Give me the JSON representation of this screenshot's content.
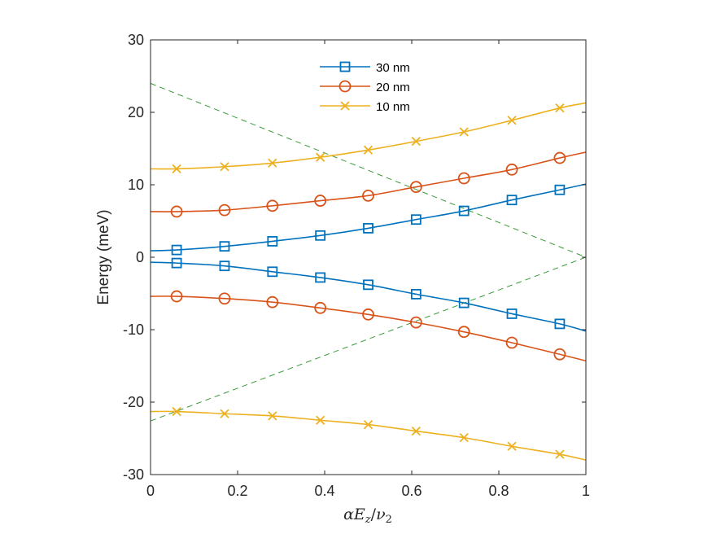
{
  "chart_data": {
    "type": "line",
    "title": "",
    "xlabel": "αE_z/ν_2",
    "xlabel_parts": {
      "alpha": "α",
      "E": "E",
      "z": "z",
      "slash": "/",
      "nu": "ν",
      "two": "2"
    },
    "ylabel": "Energy (meV)",
    "xlim": [
      0,
      1
    ],
    "ylim": [
      -30,
      30
    ],
    "xticks": [
      0,
      0.2,
      0.4,
      0.6,
      0.8,
      1
    ],
    "xtick_labels": [
      "0",
      "0.2",
      "0.4",
      "0.6",
      "0.8",
      "1"
    ],
    "yticks": [
      -30,
      -20,
      -10,
      0,
      10,
      20,
      30
    ],
    "ytick_labels": [
      "-30",
      "-20",
      "-10",
      "0",
      "10",
      "20",
      "30"
    ],
    "grid": false,
    "legend_position": "top-center",
    "x": [
      0,
      0.06,
      0.17,
      0.28,
      0.39,
      0.5,
      0.61,
      0.72,
      0.83,
      0.94,
      1
    ],
    "marker_x": [
      0.06,
      0.17,
      0.28,
      0.39,
      0.5,
      0.61,
      0.72,
      0.83,
      0.94
    ],
    "series": [
      {
        "name": "30 nm",
        "color": "#0072BD",
        "marker": "square",
        "in_legend": true,
        "values": [
          0.9,
          1.0,
          1.5,
          2.2,
          3.0,
          4.0,
          5.2,
          6.4,
          7.9,
          9.3,
          10.1
        ]
      },
      {
        "name": "30 nm",
        "color": "#0072BD",
        "marker": "square",
        "in_legend": false,
        "values": [
          -0.7,
          -0.8,
          -1.2,
          -2.0,
          -2.8,
          -3.8,
          -5.1,
          -6.3,
          -7.8,
          -9.2,
          -10.2
        ]
      },
      {
        "name": "20 nm",
        "color": "#D95319",
        "marker": "circle",
        "in_legend": true,
        "values": [
          6.3,
          6.3,
          6.5,
          7.1,
          7.8,
          8.5,
          9.7,
          10.9,
          12.1,
          13.7,
          14.5
        ]
      },
      {
        "name": "20 nm",
        "color": "#D95319",
        "marker": "circle",
        "in_legend": false,
        "values": [
          -5.4,
          -5.4,
          -5.7,
          -6.2,
          -7.0,
          -7.9,
          -9.0,
          -10.3,
          -11.8,
          -13.4,
          -14.3
        ]
      },
      {
        "name": "10 nm",
        "color": "#EDB120",
        "marker": "x",
        "in_legend": true,
        "values": [
          12.2,
          12.2,
          12.5,
          13.0,
          13.8,
          14.8,
          16.0,
          17.3,
          18.9,
          20.6,
          21.3
        ]
      },
      {
        "name": "10 nm",
        "color": "#EDB120",
        "marker": "x",
        "in_legend": false,
        "values": [
          -21.3,
          -21.3,
          -21.6,
          -21.9,
          -22.5,
          -23.1,
          -24.0,
          -24.9,
          -26.1,
          -27.2,
          -28.0
        ]
      }
    ],
    "reference_lines": [
      {
        "name": "upper-asymptote",
        "color": "#3A9A3A",
        "style": "dashed",
        "x": [
          0,
          1
        ],
        "y": [
          24,
          0
        ]
      },
      {
        "name": "lower-asymptote",
        "color": "#3A9A3A",
        "style": "dashed",
        "x": [
          0,
          1
        ],
        "y": [
          -22.6,
          0
        ]
      }
    ],
    "legend": [
      "30 nm",
      "20 nm",
      "10 nm"
    ]
  }
}
